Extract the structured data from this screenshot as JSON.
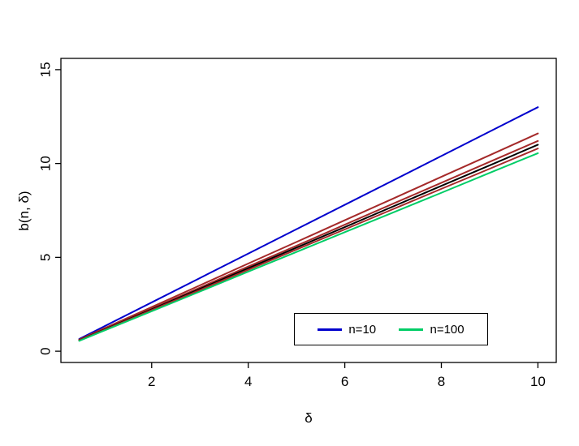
{
  "chart_data": {
    "type": "line",
    "title": "",
    "xlabel": "δ",
    "ylabel": "b(n, δ)",
    "x": [
      0.5,
      1,
      2,
      3,
      4,
      5,
      6,
      7,
      8,
      9,
      10
    ],
    "series": [
      {
        "name": "n=10",
        "color": "#0000CD",
        "values": [
          0.65,
          1.3,
          2.6,
          3.9,
          5.2,
          6.5,
          7.8,
          9.1,
          10.4,
          11.7,
          13.0
        ]
      },
      {
        "name": "unlabeled-dark-red-1",
        "color": "#A52A2A",
        "values": [
          0.62,
          1.2,
          2.35,
          3.51,
          4.67,
          5.82,
          6.98,
          8.13,
          9.29,
          10.44,
          11.6
        ]
      },
      {
        "name": "unlabeled-dark-red-2",
        "color": "#A52A2A",
        "values": [
          0.6,
          1.16,
          2.27,
          3.39,
          4.51,
          5.62,
          6.74,
          7.86,
          8.97,
          10.09,
          11.2
        ]
      },
      {
        "name": "unlabeled-black",
        "color": "#000000",
        "values": [
          0.58,
          1.13,
          2.23,
          3.32,
          4.42,
          5.52,
          6.61,
          7.71,
          8.81,
          9.9,
          11.0
        ]
      },
      {
        "name": "unlabeled-dark-red-3",
        "color": "#A52A2A",
        "values": [
          0.57,
          1.11,
          2.19,
          3.26,
          4.34,
          5.42,
          6.49,
          7.57,
          8.65,
          9.72,
          10.8
        ]
      },
      {
        "name": "n=100",
        "color": "#00CD66",
        "values": [
          0.55,
          1.08,
          2.13,
          3.18,
          4.24,
          5.29,
          6.34,
          7.39,
          8.44,
          9.5,
          10.55
        ]
      }
    ],
    "xlim": [
      0.12,
      10.38
    ],
    "ylim": [
      -0.6,
      15.6
    ],
    "x_ticks": [
      2,
      4,
      6,
      8,
      10
    ],
    "y_ticks": [
      0,
      5,
      10,
      15
    ],
    "grid": false,
    "legend": {
      "position": "inside-bottom-center",
      "entries": [
        {
          "label": "n=10",
          "color": "#0000CD"
        },
        {
          "label": "n=100",
          "color": "#00CD66"
        }
      ]
    }
  }
}
